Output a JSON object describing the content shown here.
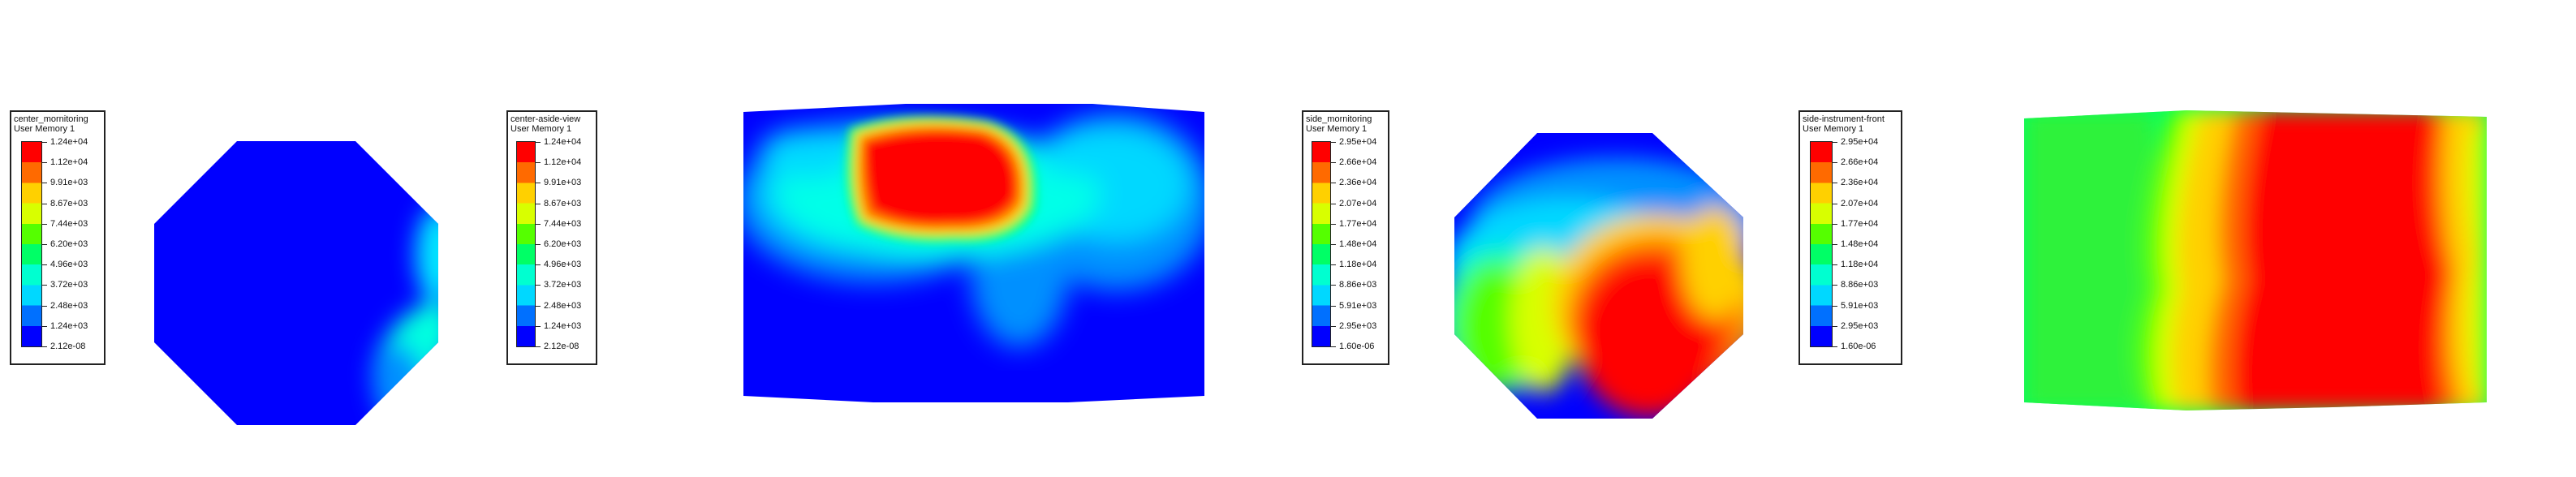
{
  "legends": [
    {
      "id": "legend-1",
      "title": "center_mornitoring",
      "subtitle": "User Memory 1",
      "labels": [
        "1.24e+04",
        "1.12e+04",
        "9.91e+03",
        "8.67e+03",
        "7.44e+03",
        "6.20e+03",
        "4.96e+03",
        "3.72e+03",
        "2.48e+03",
        "1.24e+03",
        "2.12e-08"
      ]
    },
    {
      "id": "legend-2",
      "title": "center-aside-view",
      "subtitle": "User Memory 1",
      "labels": [
        "1.24e+04",
        "1.12e+04",
        "9.91e+03",
        "8.67e+03",
        "7.44e+03",
        "6.20e+03",
        "4.96e+03",
        "3.72e+03",
        "2.48e+03",
        "1.24e+03",
        "2.12e-08"
      ]
    },
    {
      "id": "legend-3",
      "title": "side_mornitoring",
      "subtitle": "User Memory 1",
      "labels": [
        "2.95e+04",
        "2.66e+04",
        "2.36e+04",
        "2.07e+04",
        "1.77e+04",
        "1.48e+04",
        "1.18e+04",
        "8.86e+03",
        "5.91e+03",
        "2.95e+03",
        "1.60e-06"
      ]
    },
    {
      "id": "legend-4",
      "title": "side-instrument-front",
      "subtitle": "User Memory 1",
      "labels": [
        "2.95e+04",
        "2.66e+04",
        "2.36e+04",
        "2.07e+04",
        "1.77e+04",
        "1.48e+04",
        "1.18e+04",
        "8.86e+03",
        "5.91e+03",
        "2.95e+03",
        "1.60e-06"
      ]
    }
  ],
  "colormap": [
    "#ff0000",
    "#ff6a00",
    "#ffd000",
    "#d8ff00",
    "#55ff00",
    "#00ff66",
    "#00ffd0",
    "#00d8ff",
    "#0070ff",
    "#0000ff"
  ]
}
